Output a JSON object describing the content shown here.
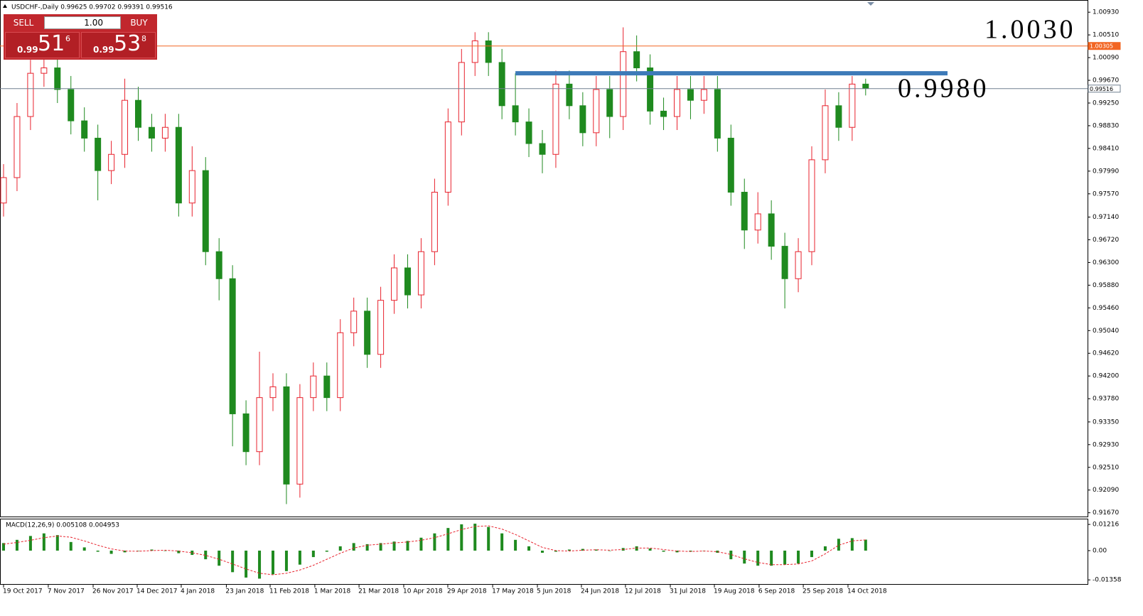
{
  "header": {
    "title": "USDCHF-,Daily  0.99625 0.99702 0.99391 0.99516"
  },
  "trade_panel": {
    "sell": "SELL",
    "buy": "BUY",
    "volume": "1.00",
    "bid_prefix": "0.99",
    "bid_big": "51",
    "bid_small": "6",
    "ask_prefix": "0.99",
    "ask_big": "53",
    "ask_small": "8"
  },
  "chart_data": [
    {
      "type": "candlestick",
      "up_color": "#e8222d",
      "down_color": "#1f8a1f",
      "open": [
        0.974,
        0.9787,
        0.99,
        0.998,
        0.999,
        0.995,
        0.9892,
        0.986,
        0.98,
        0.983,
        0.993,
        0.988,
        0.986,
        0.988,
        0.974,
        0.98,
        0.965,
        0.96,
        0.935,
        0.928,
        0.938,
        0.94,
        0.922,
        0.938,
        0.942,
        0.938,
        0.95,
        0.954,
        0.946,
        0.956,
        0.962,
        0.957,
        0.965,
        0.976,
        0.989,
        1.0,
        1.004,
        1.0,
        0.992,
        0.989,
        0.985,
        0.983,
        0.996,
        0.992,
        0.987,
        0.995,
        0.99,
        1.002,
        0.999,
        0.991,
        0.99,
        0.995,
        0.993,
        0.995,
        0.986,
        0.976,
        0.969,
        0.972,
        0.966,
        0.96,
        0.965,
        0.982,
        0.992,
        0.988,
        0.996
      ],
      "high": [
        0.9812,
        0.9925,
        1.0005,
        1.0015,
        1.0015,
        0.9975,
        0.9917,
        0.9885,
        0.9855,
        0.997,
        0.9955,
        0.9905,
        0.9905,
        0.9905,
        0.9845,
        0.9825,
        0.9675,
        0.9625,
        0.9375,
        0.9465,
        0.9425,
        0.9425,
        0.9405,
        0.9445,
        0.9445,
        0.9525,
        0.9565,
        0.9565,
        0.9585,
        0.9645,
        0.9645,
        0.9675,
        0.9785,
        0.9915,
        1.0025,
        1.0056,
        1.0056,
        1.0025,
        0.998,
        0.9915,
        0.9875,
        0.9985,
        0.9985,
        0.9945,
        0.9975,
        0.9975,
        1.0065,
        1.005,
        1.0015,
        0.9935,
        0.9975,
        0.9975,
        0.9975,
        0.9975,
        0.9885,
        0.9785,
        0.976,
        0.9745,
        0.9685,
        0.9675,
        0.9845,
        0.995,
        0.9945,
        0.9975,
        0.997
      ],
      "low": [
        0.9715,
        0.9762,
        0.9875,
        0.9955,
        0.9925,
        0.9867,
        0.9835,
        0.9745,
        0.9775,
        0.9805,
        0.9855,
        0.9835,
        0.9835,
        0.9715,
        0.9715,
        0.9625,
        0.956,
        0.929,
        0.9255,
        0.9255,
        0.9355,
        0.9183,
        0.9195,
        0.9355,
        0.9355,
        0.9355,
        0.9475,
        0.9435,
        0.9435,
        0.9535,
        0.9545,
        0.9545,
        0.9625,
        0.9735,
        0.9865,
        0.9975,
        0.9975,
        0.9895,
        0.9865,
        0.9825,
        0.9795,
        0.9805,
        0.9895,
        0.9845,
        0.9845,
        0.986,
        0.9875,
        0.9965,
        0.9885,
        0.9875,
        0.9875,
        0.9895,
        0.9905,
        0.9835,
        0.9735,
        0.9655,
        0.9665,
        0.9635,
        0.9545,
        0.9575,
        0.9625,
        0.9795,
        0.9855,
        0.9855,
        0.9939
      ],
      "close": [
        0.9787,
        0.99,
        0.998,
        0.999,
        0.995,
        0.9892,
        0.986,
        0.98,
        0.983,
        0.993,
        0.988,
        0.986,
        0.988,
        0.974,
        0.98,
        0.965,
        0.96,
        0.935,
        0.928,
        0.938,
        0.94,
        0.922,
        0.938,
        0.942,
        0.938,
        0.95,
        0.954,
        0.946,
        0.956,
        0.962,
        0.957,
        0.965,
        0.976,
        0.989,
        1.0,
        1.004,
        1.0,
        0.992,
        0.989,
        0.985,
        0.983,
        0.996,
        0.992,
        0.987,
        0.995,
        0.99,
        1.002,
        0.999,
        0.991,
        0.99,
        0.995,
        0.993,
        0.995,
        0.986,
        0.976,
        0.969,
        0.972,
        0.966,
        0.96,
        0.965,
        0.982,
        0.992,
        0.988,
        0.996,
        0.9952
      ],
      "ylim": [
        0.916,
        1.0109
      ],
      "yticks": [
        {
          "value": 1.0093,
          "label": "1.00930"
        },
        {
          "value": 1.0051,
          "label": "1.00510"
        },
        {
          "value": 1.0009,
          "label": "1.00090"
        },
        {
          "value": 0.9967,
          "label": "0.99670"
        },
        {
          "value": 0.9925,
          "label": "0.99250"
        },
        {
          "value": 0.9883,
          "label": "0.98830"
        },
        {
          "value": 0.9841,
          "label": "0.98410"
        },
        {
          "value": 0.9799,
          "label": "0.97990"
        },
        {
          "value": 0.9757,
          "label": "0.97570"
        },
        {
          "value": 0.9714,
          "label": "0.97140"
        },
        {
          "value": 0.9672,
          "label": "0.96720"
        },
        {
          "value": 0.963,
          "label": "0.96300"
        },
        {
          "value": 0.9588,
          "label": "0.95880"
        },
        {
          "value": 0.9546,
          "label": "0.95460"
        },
        {
          "value": 0.9504,
          "label": "0.95040"
        },
        {
          "value": 0.9462,
          "label": "0.94620"
        },
        {
          "value": 0.942,
          "label": "0.94200"
        },
        {
          "value": 0.9378,
          "label": "0.93780"
        },
        {
          "value": 0.9335,
          "label": "0.93350"
        },
        {
          "value": 0.9293,
          "label": "0.92930"
        },
        {
          "value": 0.9251,
          "label": "0.92510"
        },
        {
          "value": 0.9209,
          "label": "0.92090"
        },
        {
          "value": 0.9167,
          "label": "0.91670"
        }
      ],
      "xticks": [
        {
          "value": 0,
          "label": "19 Oct 2017"
        },
        {
          "value": 3.32,
          "label": "7 Nov 2017"
        },
        {
          "value": 6.65,
          "label": "26 Nov 2017"
        },
        {
          "value": 9.92,
          "label": "14 Dec 2017"
        },
        {
          "value": 13.19,
          "label": "4 Jan 2018"
        },
        {
          "value": 16.54,
          "label": "23 Jan 2018"
        },
        {
          "value": 19.79,
          "label": "11 Feb 2018"
        },
        {
          "value": 23.11,
          "label": "1 Mar 2018"
        },
        {
          "value": 26.39,
          "label": "21 Mar 2018"
        },
        {
          "value": 29.71,
          "label": "10 Apr 2018"
        },
        {
          "value": 32.98,
          "label": "29 Apr 2018"
        },
        {
          "value": 36.31,
          "label": "17 May 2018"
        },
        {
          "value": 39.63,
          "label": "5 Jun 2018"
        },
        {
          "value": 42.9,
          "label": "24 Jun 2018"
        },
        {
          "value": 46.17,
          "label": "12 Jul 2018"
        },
        {
          "value": 49.5,
          "label": "31 Jul 2018"
        },
        {
          "value": 52.77,
          "label": "19 Aug 2018"
        },
        {
          "value": 56.09,
          "label": "6 Sep 2018"
        },
        {
          "value": 59.37,
          "label": "25 Sep 2018"
        },
        {
          "value": 62.69,
          "label": "14 Oct 2018"
        }
      ],
      "hlines": [
        {
          "value": 1.00305,
          "color": "#f26522"
        },
        {
          "value": 0.99516,
          "color": "#708090"
        },
        {
          "value": 0.998,
          "color": "#3d7ab8"
        }
      ],
      "annotations": [
        {
          "text": "1.0030",
          "color": "#f26522"
        },
        {
          "text": "0.9980",
          "color": "#f26522"
        }
      ]
    },
    {
      "type": "bar",
      "title": "MACD(12,26,9) 0.005108 0.004953",
      "color": "#1f8a1f",
      "signal_color": "#e8222d",
      "values": [
        0.0035,
        0.005,
        0.0068,
        0.008,
        0.0072,
        0.004,
        0.0015,
        -0.0005,
        -0.0015,
        -0.0008,
        0.0,
        0.0005,
        0.0,
        -0.0012,
        -0.002,
        -0.004,
        -0.007,
        -0.01,
        -0.0125,
        -0.013,
        -0.011,
        -0.0095,
        -0.0065,
        -0.003,
        -0.0005,
        0.002,
        0.0035,
        0.003,
        0.0035,
        0.0042,
        0.0045,
        0.006,
        0.008,
        0.0105,
        0.0122,
        0.0125,
        0.011,
        0.008,
        0.005,
        0.002,
        -0.001,
        -0.0005,
        0.0005,
        0.0008,
        0.0005,
        0.0,
        0.0012,
        0.002,
        0.001,
        -0.0005,
        -0.0008,
        -0.0005,
        0.0,
        -0.001,
        -0.004,
        -0.006,
        -0.007,
        -0.007,
        -0.0065,
        -0.006,
        -0.003,
        0.002,
        0.0055,
        0.0058,
        0.0051
      ],
      "signal_values": [
        0.003,
        0.0038,
        0.0048,
        0.006,
        0.0068,
        0.0062,
        0.0045,
        0.0025,
        0.0008,
        -0.0002,
        -0.0003,
        0.0,
        0.0002,
        -0.0002,
        -0.001,
        -0.0022,
        -0.004,
        -0.0062,
        -0.0085,
        -0.0105,
        -0.0112,
        -0.0105,
        -0.009,
        -0.0068,
        -0.004,
        -0.0012,
        0.0012,
        0.0025,
        0.003,
        0.0036,
        0.004,
        0.0048,
        0.006,
        0.0078,
        0.0098,
        0.0112,
        0.0115,
        0.01,
        0.0075,
        0.0045,
        0.0015,
        0.0,
        -0.0002,
        0.0002,
        0.0004,
        0.0002,
        0.0005,
        0.0012,
        0.0012,
        0.0005,
        -0.0002,
        -0.0004,
        -0.0002,
        -0.0005,
        -0.0018,
        -0.0038,
        -0.0055,
        -0.0065,
        -0.0065,
        -0.0062,
        -0.0048,
        -0.0015,
        0.0025,
        0.0045,
        0.005
      ],
      "ylim": [
        -0.0155,
        0.0145
      ],
      "yticks": [
        0.01216,
        {
          "value": 0,
          "label": "0.00"
        },
        -0.01358
      ]
    }
  ]
}
